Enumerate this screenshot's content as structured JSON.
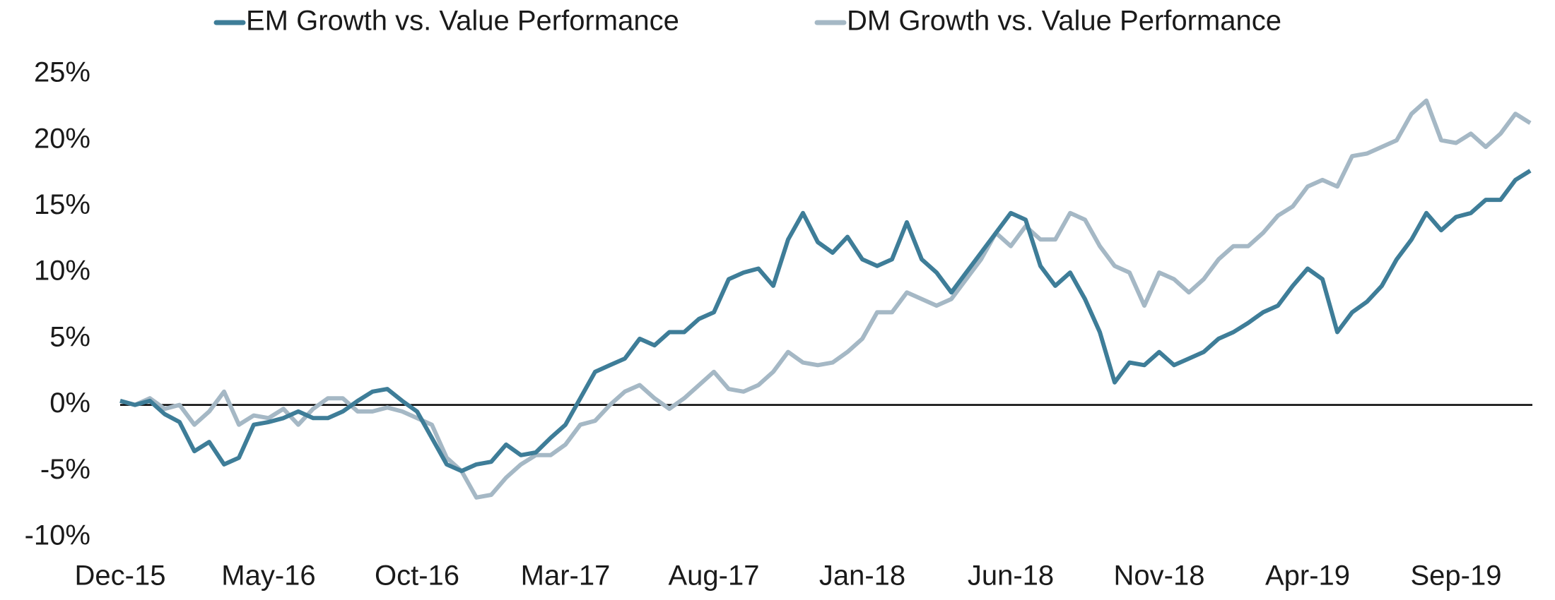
{
  "chart_data": {
    "type": "line",
    "categories": [
      "Dec-15",
      null,
      null,
      null,
      null,
      null,
      null,
      null,
      null,
      null,
      "May-16",
      null,
      null,
      null,
      null,
      null,
      null,
      null,
      null,
      null,
      "Oct-16",
      null,
      null,
      null,
      null,
      null,
      null,
      null,
      null,
      null,
      "Mar-17",
      null,
      null,
      null,
      null,
      null,
      null,
      null,
      null,
      null,
      "Aug-17",
      null,
      null,
      null,
      null,
      null,
      null,
      null,
      null,
      null,
      "Jan-18",
      null,
      null,
      null,
      null,
      null,
      null,
      null,
      null,
      null,
      "Jun-18",
      null,
      null,
      null,
      null,
      null,
      null,
      null,
      null,
      null,
      "Nov-18",
      null,
      null,
      null,
      null,
      null,
      null,
      null,
      null,
      null,
      "Apr-19",
      null,
      null,
      null,
      null,
      null,
      null,
      null,
      null,
      null,
      "Sep-19",
      null,
      null,
      null,
      null,
      null
    ],
    "series": [
      {
        "name": "EM Growth vs. Value Performance",
        "color": "#3e7d98",
        "values": [
          0.3,
          0,
          0.3,
          -0.7,
          -1.3,
          -3.5,
          -2.8,
          -4.5,
          -4.0,
          -1.5,
          -1.3,
          -1.0,
          -0.5,
          -1.0,
          -1.0,
          -0.5,
          0.3,
          1.0,
          1.2,
          0.3,
          -0.5,
          -2.5,
          -4.5,
          -5.0,
          -4.5,
          -4.3,
          -3.0,
          -3.8,
          -3.6,
          -2.5,
          -1.5,
          0.5,
          2.5,
          3.0,
          3.5,
          5.0,
          4.5,
          5.5,
          5.5,
          6.5,
          7.0,
          9.5,
          10.0,
          10.3,
          9.0,
          12.5,
          14.5,
          12.3,
          11.5,
          12.7,
          11.0,
          10.5,
          11.0,
          13.8,
          11.0,
          10.0,
          8.5,
          10.0,
          11.5,
          13.0,
          14.5,
          14.0,
          10.5,
          9.0,
          10.0,
          8.0,
          5.5,
          1.7,
          3.2,
          3.0,
          4.0,
          3.0,
          3.5,
          4.0,
          5.0,
          5.5,
          6.2,
          7.0,
          7.5,
          9.0,
          10.3,
          9.5,
          5.5,
          7.0,
          7.8,
          9.0,
          11.0,
          12.5,
          14.5,
          13.2,
          14.2,
          14.5,
          15.5,
          15.5,
          17.0,
          17.7
        ]
      },
      {
        "name": "DM Growth vs. Value Performance",
        "color": "#a5b8c5",
        "values": [
          0.3,
          0,
          0.5,
          -0.3,
          0,
          -1.5,
          -0.5,
          1.0,
          -1.5,
          -0.8,
          -1.0,
          -0.3,
          -1.5,
          -0.3,
          0.5,
          0.5,
          -0.5,
          -0.5,
          -0.2,
          -0.5,
          -1.0,
          -1.5,
          -4.0,
          -5.0,
          -7.0,
          -6.8,
          -5.5,
          -4.5,
          -3.8,
          -3.8,
          -3.0,
          -1.5,
          -1.2,
          0.0,
          1.0,
          1.5,
          0.5,
          -0.3,
          0.5,
          1.5,
          2.5,
          1.2,
          1.0,
          1.5,
          2.5,
          4.0,
          3.2,
          3.0,
          3.2,
          4.0,
          5.0,
          7.0,
          7.0,
          8.5,
          8.0,
          7.5,
          8.0,
          9.5,
          11.0,
          13.0,
          12.0,
          13.5,
          12.5,
          12.5,
          14.5,
          14.0,
          12.0,
          10.5,
          10.0,
          7.5,
          10.0,
          9.5,
          8.5,
          9.5,
          11.0,
          12.0,
          12.0,
          13.0,
          14.3,
          15.0,
          16.5,
          17.0,
          16.5,
          18.8,
          19.0,
          19.5,
          20.0,
          22.0,
          23.0,
          20.0,
          19.8,
          20.5,
          19.5,
          20.5,
          22.0,
          21.3
        ]
      }
    ],
    "ylim": [
      -10,
      25
    ],
    "yticks": [
      {
        "value": -10,
        "label": "-10%"
      },
      {
        "value": -5,
        "label": "-5%"
      },
      {
        "value": 0,
        "label": "0%"
      },
      {
        "value": 5,
        "label": "5%"
      },
      {
        "value": 10,
        "label": "10%"
      },
      {
        "value": 15,
        "label": "15%"
      },
      {
        "value": 20,
        "label": "20%"
      },
      {
        "value": 25,
        "label": "25%"
      }
    ],
    "grid": false,
    "legend": "top"
  }
}
